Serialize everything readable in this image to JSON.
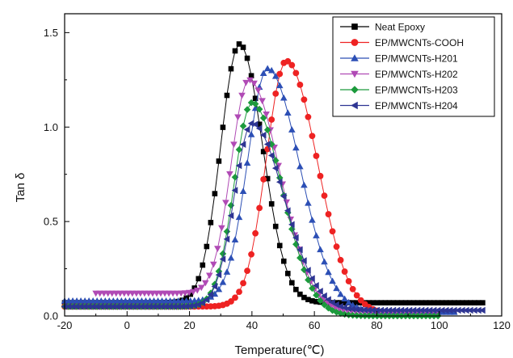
{
  "chart_data": {
    "type": "line",
    "xlabel": "Temperature(℃)",
    "ylabel": "Tan δ",
    "xlim": [
      -20,
      120
    ],
    "ylim": [
      0,
      1.6
    ],
    "xticks": [
      -20,
      0,
      20,
      40,
      60,
      80,
      100,
      120
    ],
    "xtick_labels": [
      "-20",
      "0",
      "20",
      "40",
      "60",
      "80",
      "100",
      "120"
    ],
    "yticks": [
      0,
      0.5,
      1,
      1.5
    ],
    "ytick_labels": [
      "0.0",
      "0.5",
      "1.0",
      "1.5"
    ],
    "grid": false,
    "legend_position": "top-right",
    "series": [
      {
        "name": "Neat Epoxy",
        "color": "#000000",
        "marker": "square",
        "start": -20,
        "end": 115,
        "base": 0.07,
        "peak_x": 36,
        "peak": 1.44,
        "wl": 8.5,
        "wr": 10.5,
        "tail": 0.07
      },
      {
        "name": "EP/MWCNTs-COOH",
        "color": "#ee2222",
        "marker": "circle",
        "start": -20,
        "end": 100,
        "base": 0.05,
        "peak_x": 51,
        "peak": 1.35,
        "wl": 9.0,
        "wr": 14.0,
        "tail": 0.01
      },
      {
        "name": "EP/MWCNTs-H201",
        "color": "#2c4fb5",
        "marker": "triangle-up",
        "start": -20,
        "end": 105,
        "base": 0.08,
        "peak_x": 45,
        "peak": 1.31,
        "wl": 9.0,
        "wr": 14.5,
        "tail": 0.02
      },
      {
        "name": "EP/MWCNTs-H202",
        "color": "#b04ab5",
        "marker": "triangle-down",
        "start": -10,
        "end": 100,
        "base": 0.12,
        "peak_x": 39,
        "peak": 1.25,
        "wl": 8.0,
        "wr": 14.0,
        "tail": 0.02
      },
      {
        "name": "EP/MWCNTs-H203",
        "color": "#1c9a3c",
        "marker": "diamond",
        "start": -20,
        "end": 100,
        "base": 0.05,
        "peak_x": 40,
        "peak": 1.13,
        "wl": 8.0,
        "wr": 13.5,
        "tail": 0.0
      },
      {
        "name": "EP/MWCNTs-H204",
        "color": "#2e3593",
        "marker": "triangle-left",
        "start": -20,
        "end": 115,
        "base": 0.05,
        "peak_x": 40,
        "peak": 1.02,
        "wl": 8.0,
        "wr": 14.5,
        "tail": 0.03
      }
    ]
  }
}
